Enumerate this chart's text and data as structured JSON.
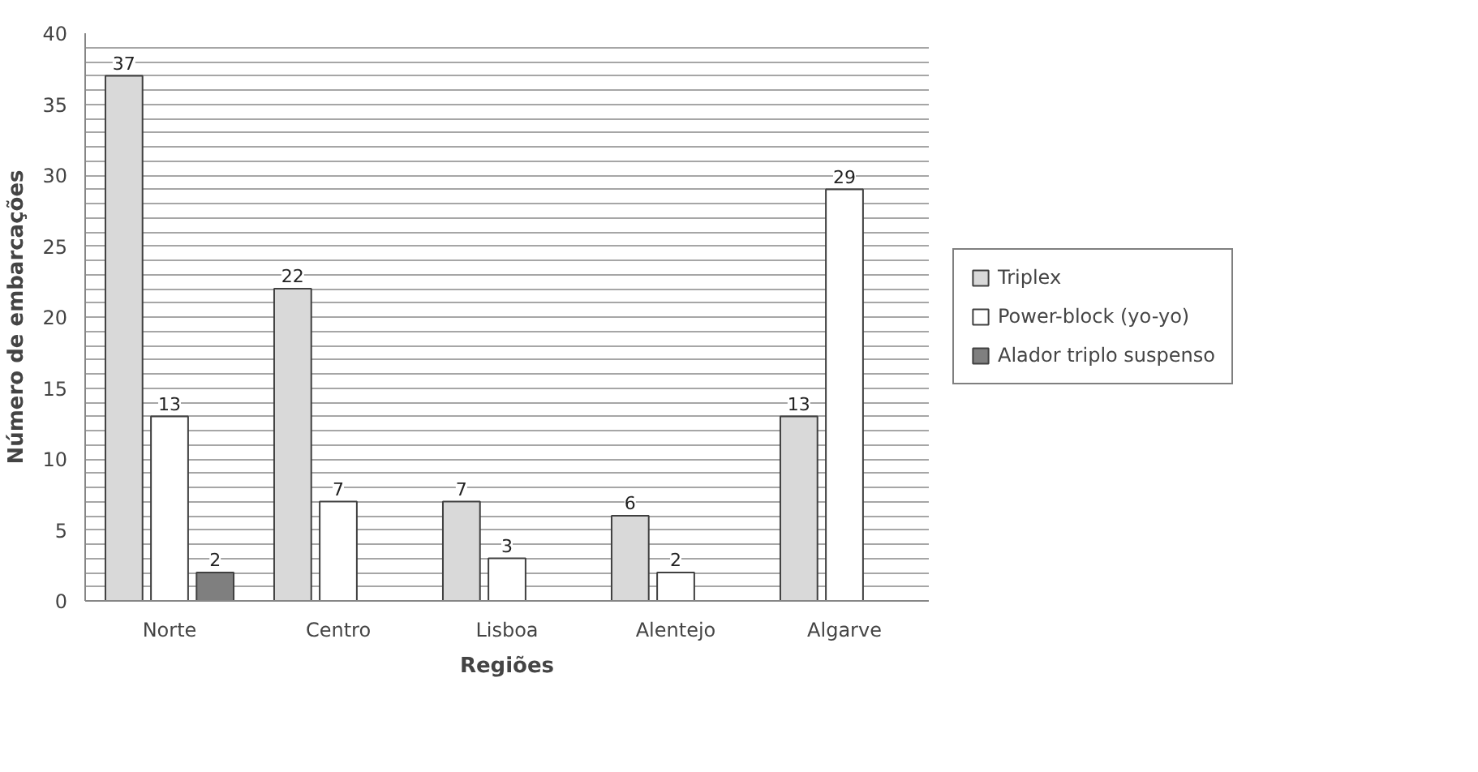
{
  "chart_data": {
    "type": "bar",
    "xlabel": "Regiões",
    "ylabel": "Número de embarcações",
    "categories": [
      "Norte",
      "Centro",
      "Lisboa",
      "Alentejo",
      "Algarve"
    ],
    "series": [
      {
        "name": "Triplex",
        "color": "#d9d9d9",
        "values": [
          37,
          22,
          7,
          6,
          13
        ]
      },
      {
        "name": "Power-block (yo-yo)",
        "color": "#ffffff",
        "values": [
          13,
          7,
          3,
          2,
          29
        ]
      },
      {
        "name": "Alador triplo suspenso",
        "color": "#7f7f7f",
        "values": [
          2,
          null,
          null,
          null,
          null
        ]
      }
    ],
    "ylim": [
      0,
      40
    ],
    "yticks": [
      0,
      {
        "value": 1,
        "label": null
      },
      {
        "value": 2,
        "label": null
      },
      {
        "value": 3,
        "label": null
      },
      {
        "value": 4,
        "label": null
      },
      5,
      {
        "value": 6,
        "label": null
      },
      {
        "value": 7,
        "label": null
      },
      {
        "value": 8,
        "label": null
      },
      {
        "value": 9,
        "label": null
      },
      10,
      {
        "value": 11,
        "label": null
      },
      {
        "value": 12,
        "label": null
      },
      {
        "value": 13,
        "label": null
      },
      {
        "value": 14,
        "label": null
      },
      15,
      {
        "value": 16,
        "label": null
      },
      {
        "value": 17,
        "label": null
      },
      {
        "value": 18,
        "label": null
      },
      {
        "value": 19,
        "label": null
      },
      20,
      {
        "value": 21,
        "label": null
      },
      {
        "value": 22,
        "label": null
      },
      {
        "value": 23,
        "label": null
      },
      {
        "value": 24,
        "label": null
      },
      25,
      {
        "value": 26,
        "label": null
      },
      {
        "value": 27,
        "label": null
      },
      {
        "value": 28,
        "label": null
      },
      {
        "value": 29,
        "label": null
      },
      30,
      {
        "value": 31,
        "label": null
      },
      {
        "value": 32,
        "label": null
      },
      {
        "value": 33,
        "label": null
      },
      {
        "value": 34,
        "label": null
      },
      35,
      {
        "value": 36,
        "label": null
      },
      {
        "value": 37,
        "label": null
      },
      {
        "value": 38,
        "label": null
      },
      {
        "value": 39,
        "label": null
      },
      40
    ],
    "grid": "y",
    "legend": "right",
    "data_labels": true
  }
}
